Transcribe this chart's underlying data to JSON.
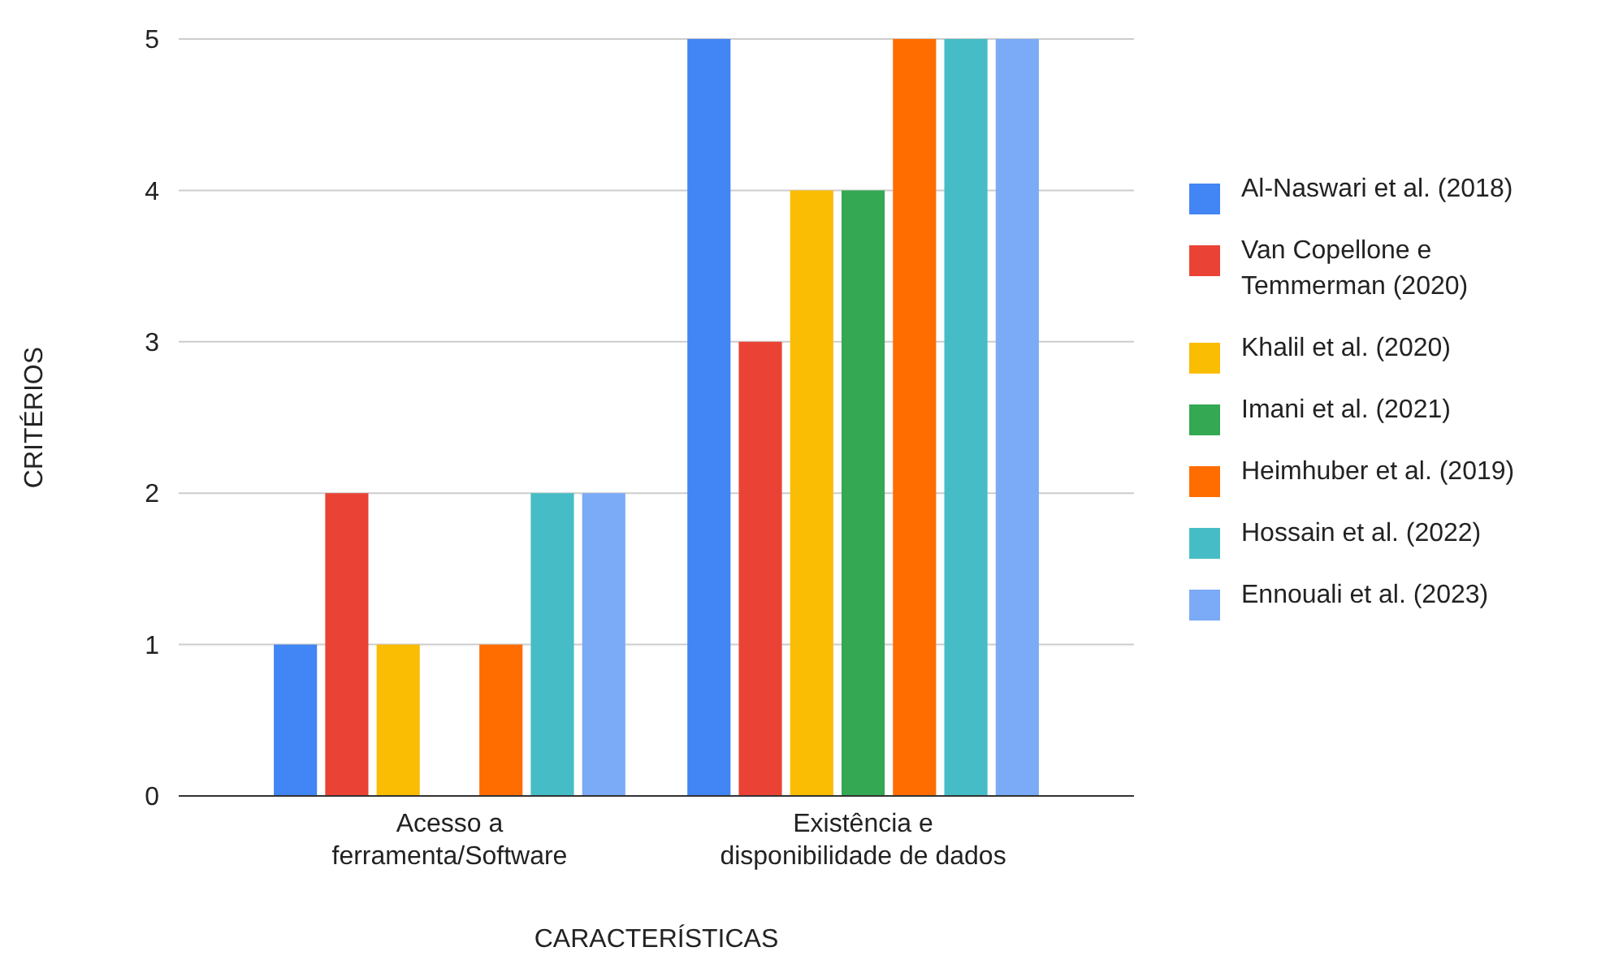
{
  "chart_data": {
    "type": "bar",
    "xlabel": "CARACTERÍSTICAS",
    "ylabel": "CRITÉRIOS",
    "categories": [
      "Acesso a ferramenta/Software",
      "Existência e disponibilidade de dados"
    ],
    "series": [
      {
        "name": "Al-Naswari et al. (2018)",
        "color": "#4285f4",
        "values": [
          1,
          5
        ]
      },
      {
        "name": "Van Copellone e Temmerman (2020)",
        "color": "#ea4335",
        "values": [
          2,
          3
        ]
      },
      {
        "name": "Khalil et al. (2020)",
        "color": "#fbbc04",
        "values": [
          1,
          4
        ]
      },
      {
        "name": "Imani et al. (2021)",
        "color": "#34a853",
        "values": [
          0,
          4
        ]
      },
      {
        "name": "Heimhuber et al. (2019)",
        "color": "#ff6d01",
        "values": [
          1,
          5
        ]
      },
      {
        "name": "Hossain et al. (2022)",
        "color": "#46bdc6",
        "values": [
          2,
          5
        ]
      },
      {
        "name": "Ennouali et al. (2023)",
        "color": "#7baaf7",
        "values": [
          2,
          5
        ]
      }
    ],
    "ylim": [
      0,
      5
    ],
    "yticks": [
      0,
      1,
      2,
      3,
      4,
      5
    ],
    "grid": "y",
    "legend": "right"
  }
}
